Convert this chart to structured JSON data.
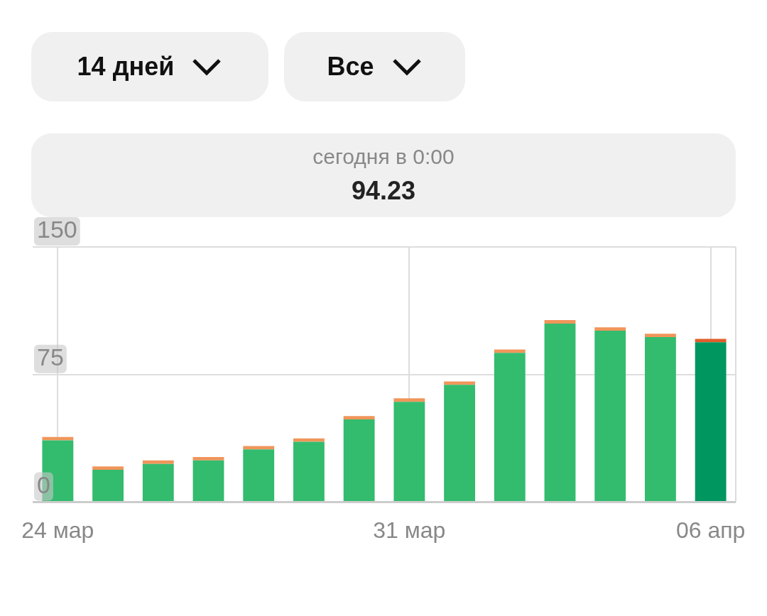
{
  "chart_data": {
    "type": "bar",
    "stacked": true,
    "annotations": [
      "14 дней",
      "Все",
      "сегодня в 0:00",
      "94.23"
    ],
    "categories": [
      "24 мар",
      null,
      null,
      null,
      null,
      null,
      null,
      "31 мар",
      null,
      null,
      null,
      null,
      null,
      "06 апр"
    ],
    "series": [
      {
        "colors": [
          "#33bb6e",
          "#33bb6e",
          "#33bb6e",
          "#33bb6e",
          "#33bb6e",
          "#33bb6e",
          "#33bb6e",
          "#33bb6e",
          "#33bb6e",
          "#33bb6e",
          "#33bb6e",
          "#33bb6e",
          "#33bb6e",
          "#00965f"
        ],
        "values": [
          36.3,
          19,
          22.5,
          24.5,
          31,
          35.5,
          48.6,
          59,
          69,
          87.7,
          105,
          100.8,
          97,
          94
        ]
      },
      {
        "colors": [
          "#f0955a",
          "#f0955a",
          "#f0955a",
          "#f0955a",
          "#f0955a",
          "#f0955a",
          "#f0955a",
          "#f0955a",
          "#f0955a",
          "#f0955a",
          "#f0955a",
          "#f0955a",
          "#f0955a",
          "#e35d2a"
        ],
        "values": [
          2,
          2,
          2,
          2,
          2,
          2,
          2,
          2,
          2,
          2,
          2,
          2,
          2,
          2
        ]
      }
    ],
    "ylim": [
      0,
      150
    ],
    "yticks": [
      0,
      75,
      150
    ],
    "grid": true,
    "legend": false
  }
}
